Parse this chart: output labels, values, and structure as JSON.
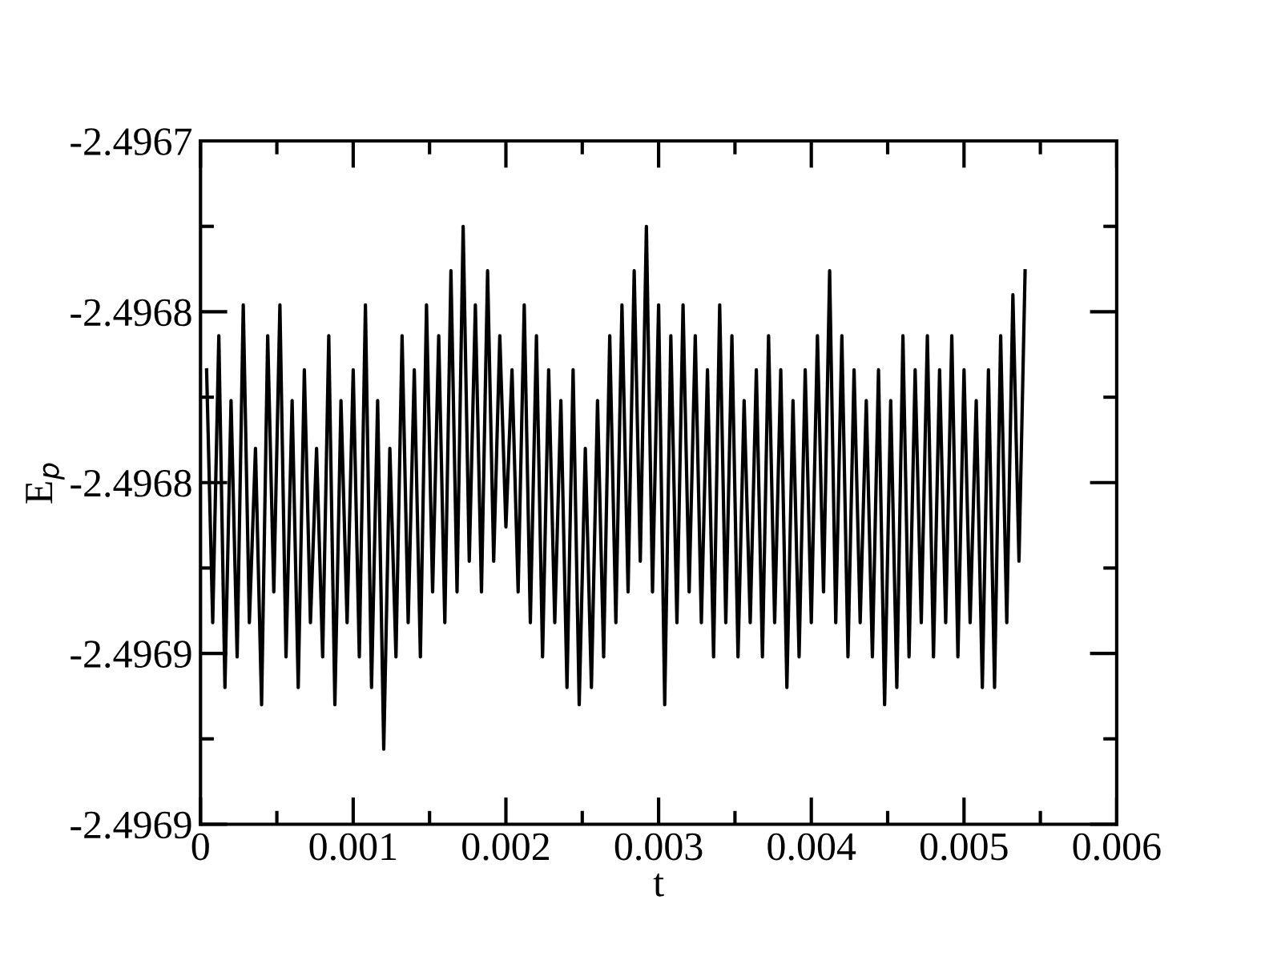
{
  "chart_data": {
    "type": "line",
    "xlabel": "t",
    "ylabel": "E$_{p}$",
    "xlim": [
      0,
      0.006
    ],
    "xticks": [
      0,
      0.001,
      0.002,
      0.003,
      0.004,
      0.005,
      0.006
    ],
    "ylim": [
      -2.4969,
      -2.4967
    ],
    "yticks": [
      {
        "value": -2.4969,
        "label": "-2.4969"
      },
      {
        "value": -2.49685,
        "label": "-2.4969"
      },
      {
        "value": -2.4968,
        "label": "-2.4968"
      },
      {
        "value": -2.49675,
        "label": "-2.4968"
      },
      {
        "value": -2.4967,
        "label": "-2.4967"
      }
    ],
    "grid": false,
    "legend": false,
    "marker": "none",
    "line_style": "solid",
    "x": [
      4e-05,
      8e-05,
      0.00012,
      0.00016,
      0.0002,
      0.00024,
      0.00028,
      0.00032,
      0.00036,
      0.0004,
      0.00044,
      0.00048,
      0.00052,
      0.00056,
      0.0006,
      0.00064,
      0.00068,
      0.00072,
      0.00076,
      0.0008,
      0.00084,
      0.00088,
      0.00092,
      0.00096,
      0.001,
      0.00104,
      0.00108,
      0.00112,
      0.00116,
      0.0012,
      0.00124,
      0.00128,
      0.00132,
      0.00136,
      0.0014,
      0.00144,
      0.00148,
      0.00152,
      0.00156,
      0.0016,
      0.00164,
      0.00168,
      0.00172,
      0.00176,
      0.0018,
      0.00184,
      0.00188,
      0.00192,
      0.00196,
      0.002,
      0.00204,
      0.00208,
      0.00212,
      0.00216,
      0.0022,
      0.00224,
      0.00228,
      0.00232,
      0.00236,
      0.0024,
      0.00244,
      0.00248,
      0.00252,
      0.00256,
      0.0026,
      0.00264,
      0.00268,
      0.00272,
      0.00276,
      0.0028,
      0.00284,
      0.00288,
      0.00292,
      0.00296,
      0.003,
      0.00304,
      0.00308,
      0.00312,
      0.00316,
      0.0032,
      0.00324,
      0.00328,
      0.00332,
      0.00336,
      0.0034,
      0.00344,
      0.00348,
      0.00352,
      0.00356,
      0.0036,
      0.00364,
      0.00368,
      0.00372,
      0.00376,
      0.0038,
      0.00384,
      0.00388,
      0.00392,
      0.00396,
      0.004,
      0.00404,
      0.00408,
      0.00412,
      0.00416,
      0.0042,
      0.00424,
      0.00428,
      0.00432,
      0.00436,
      0.0044,
      0.00444,
      0.00448,
      0.00452,
      0.00456,
      0.0046,
      0.00464,
      0.00468,
      0.00472,
      0.00476,
      0.0048,
      0.00484,
      0.00488,
      0.00492,
      0.00496,
      0.005,
      0.00504,
      0.00508,
      0.00512,
      0.00516,
      0.0052,
      0.00524,
      0.00528,
      0.00532,
      0.00536,
      0.0054
    ],
    "series": [
      {
        "color": "#000000",
        "values": [
          -2.496767,
          -2.496841,
          -2.496757,
          -2.49686,
          -2.496776,
          -2.496851,
          -2.496748,
          -2.496841,
          -2.49679,
          -2.496865,
          -2.496757,
          -2.496832,
          -2.496748,
          -2.496851,
          -2.496776,
          -2.49686,
          -2.496767,
          -2.496841,
          -2.49679,
          -2.496851,
          -2.496757,
          -2.496865,
          -2.496776,
          -2.496841,
          -2.496767,
          -2.496851,
          -2.496748,
          -2.49686,
          -2.496776,
          -2.496878,
          -2.49679,
          -2.496851,
          -2.496757,
          -2.496841,
          -2.496767,
          -2.496851,
          -2.496748,
          -2.496832,
          -2.496757,
          -2.496841,
          -2.496738,
          -2.496832,
          -2.496725,
          -2.496823,
          -2.496748,
          -2.496832,
          -2.496738,
          -2.496823,
          -2.496757,
          -2.496813,
          -2.496767,
          -2.496832,
          -2.496748,
          -2.496841,
          -2.496757,
          -2.496851,
          -2.496767,
          -2.496841,
          -2.496776,
          -2.49686,
          -2.496767,
          -2.496865,
          -2.49679,
          -2.49686,
          -2.496776,
          -2.496851,
          -2.496757,
          -2.496841,
          -2.496748,
          -2.496832,
          -2.496738,
          -2.496823,
          -2.496725,
          -2.496832,
          -2.496748,
          -2.496865,
          -2.496757,
          -2.496841,
          -2.496748,
          -2.496832,
          -2.496757,
          -2.496841,
          -2.496767,
          -2.496851,
          -2.496748,
          -2.496841,
          -2.496757,
          -2.496851,
          -2.496776,
          -2.496841,
          -2.496767,
          -2.496851,
          -2.496757,
          -2.496841,
          -2.496767,
          -2.49686,
          -2.496776,
          -2.496851,
          -2.496767,
          -2.496841,
          -2.496757,
          -2.496832,
          -2.496738,
          -2.496841,
          -2.496757,
          -2.496851,
          -2.496767,
          -2.496841,
          -2.496776,
          -2.496851,
          -2.496767,
          -2.496865,
          -2.496776,
          -2.49686,
          -2.496757,
          -2.496851,
          -2.496767,
          -2.496841,
          -2.496757,
          -2.496851,
          -2.496767,
          -2.496841,
          -2.496757,
          -2.496851,
          -2.496767,
          -2.496841,
          -2.496776,
          -2.49686,
          -2.496767,
          -2.49686,
          -2.496757,
          -2.496841,
          -2.496745,
          -2.496823,
          -2.496738
        ]
      }
    ]
  }
}
